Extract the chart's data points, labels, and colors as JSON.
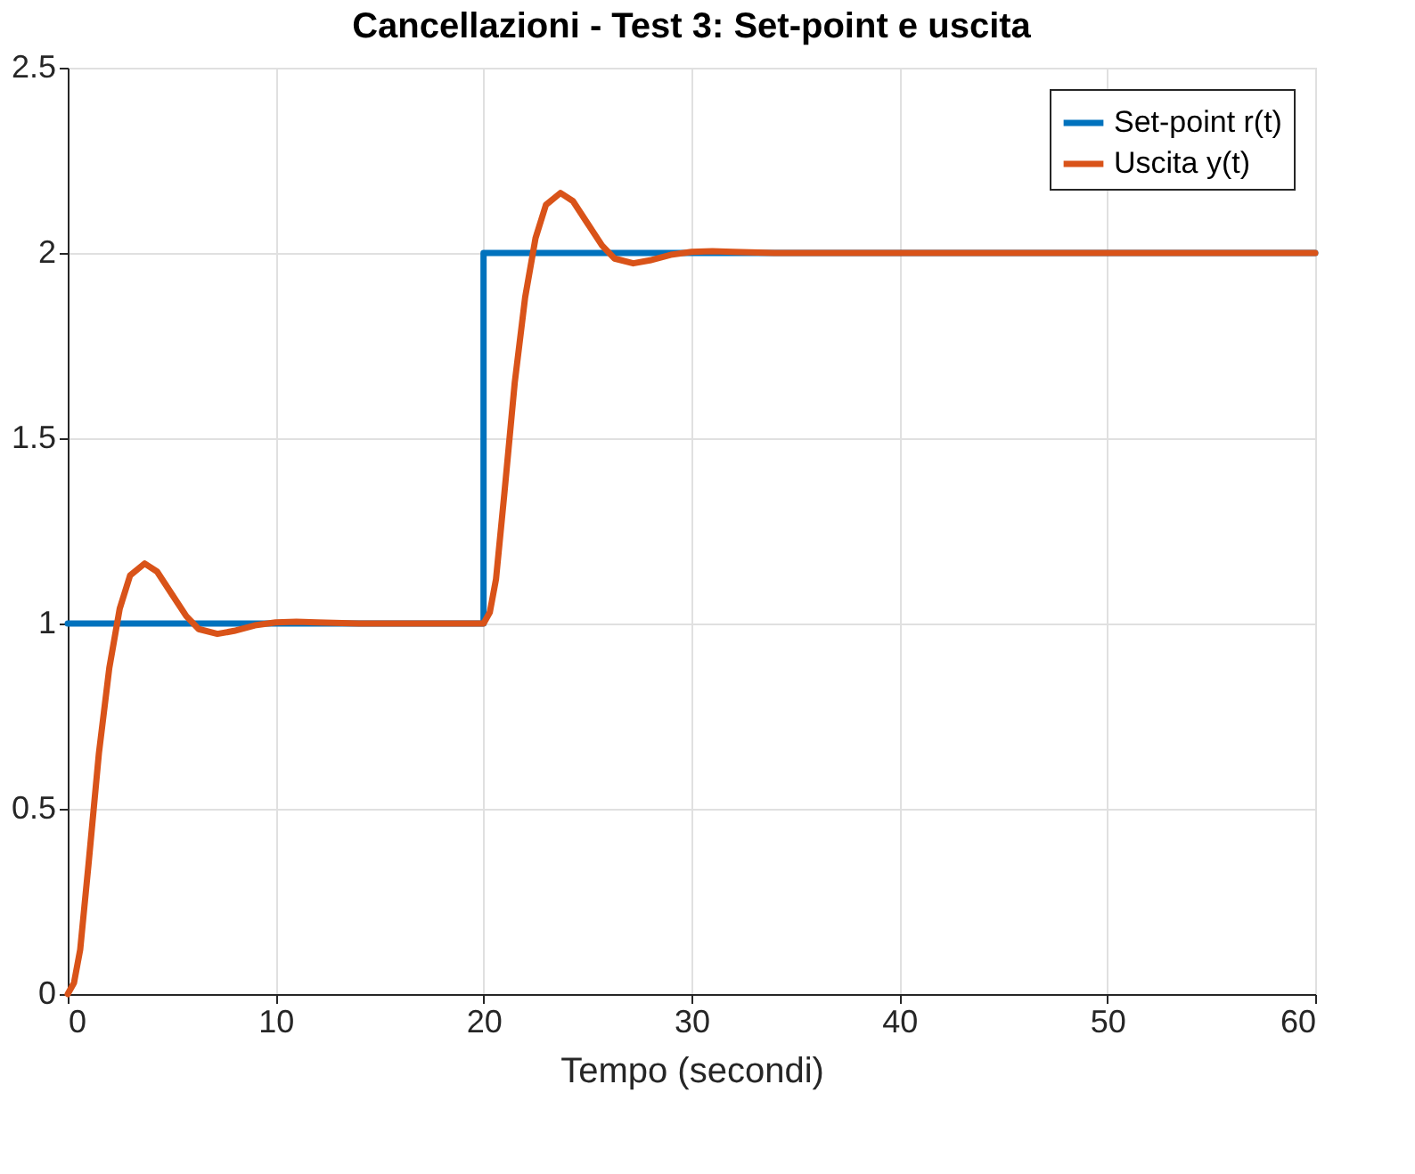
{
  "chart_data": {
    "type": "line",
    "title": "Cancellazioni - Test 3: Set-point e uscita",
    "xlabel": "Tempo (secondi)",
    "series": [
      {
        "name": "Set-point r(t)",
        "color": "#0072bd",
        "x": [
          0,
          20,
          20,
          60
        ],
        "values": [
          1,
          1,
          2,
          2
        ]
      },
      {
        "name": "Uscita y(t)",
        "color": "#d95319",
        "x": [
          0,
          0.3,
          0.6,
          1,
          1.5,
          2,
          2.5,
          3,
          3.7,
          4.3,
          5,
          5.7,
          6.3,
          7.2,
          8,
          9,
          10,
          11,
          12,
          14,
          20,
          20.3,
          20.6,
          21,
          21.5,
          22,
          22.5,
          23,
          23.7,
          24.3,
          25,
          25.7,
          26.3,
          27.2,
          28,
          29,
          30,
          31,
          32,
          34,
          60
        ],
        "values": [
          0,
          0.03,
          0.12,
          0.35,
          0.65,
          0.88,
          1.04,
          1.13,
          1.162,
          1.14,
          1.08,
          1.02,
          0.985,
          0.972,
          0.98,
          0.995,
          1.003,
          1.005,
          1.003,
          1,
          1,
          1.03,
          1.12,
          1.35,
          1.65,
          1.88,
          2.04,
          2.13,
          2.162,
          2.14,
          2.08,
          2.02,
          1.985,
          1.972,
          1.98,
          1.995,
          2.003,
          2.005,
          2.003,
          2,
          2
        ]
      }
    ],
    "xlim": [
      0,
      60
    ],
    "xticks": [
      0,
      10,
      20,
      30,
      40,
      50,
      60
    ],
    "ylim": [
      0,
      2.5
    ],
    "yticks": [
      0,
      0.5,
      1,
      1.5,
      2,
      2.5
    ],
    "grid": true,
    "legend": "top right",
    "line_style": "solid",
    "marker": "none"
  }
}
